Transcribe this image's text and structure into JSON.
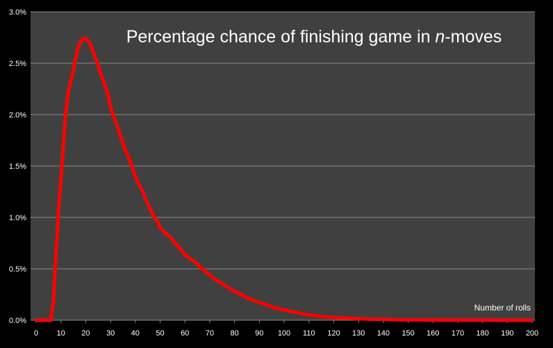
{
  "chart_data": {
    "type": "line",
    "title_main": "Percentage chance of finishing game in ",
    "title_italic": "n",
    "title_tail": "-moves",
    "xlabel": "Number of rolls",
    "ylabel": "",
    "xlim": [
      0,
      200
    ],
    "ylim": [
      0,
      0.03
    ],
    "x_ticks": [
      0,
      10,
      20,
      30,
      40,
      50,
      60,
      70,
      80,
      90,
      100,
      110,
      120,
      130,
      140,
      150,
      160,
      170,
      180,
      190,
      200
    ],
    "y_ticks": [
      0,
      0.005,
      0.01,
      0.015,
      0.02,
      0.025,
      0.03
    ],
    "y_tick_labels": [
      "0.0%",
      "0.5%",
      "1.0%",
      "1.5%",
      "2.0%",
      "2.5%",
      "3.0%"
    ],
    "grid": true,
    "line_color": "#ff0000",
    "background_color": "#404040",
    "series": [
      {
        "x": [
          0,
          6,
          7,
          8,
          9,
          10,
          11,
          12,
          13,
          14,
          15,
          16,
          17,
          18,
          19,
          20,
          21,
          22,
          23,
          24,
          25,
          26,
          27,
          28,
          29,
          30,
          31,
          32,
          33,
          34,
          35,
          36,
          37,
          38,
          39,
          40,
          41,
          42,
          43,
          44,
          45,
          46,
          47,
          48,
          49,
          50,
          52,
          54,
          56,
          58,
          60,
          62,
          64,
          66,
          68,
          70,
          72,
          74,
          76,
          78,
          80,
          82,
          84,
          86,
          88,
          90,
          92,
          94,
          96,
          98,
          100,
          102,
          104,
          106,
          108,
          110,
          112,
          114,
          116,
          118,
          120,
          125,
          130,
          135,
          140,
          145,
          150,
          160,
          170,
          180,
          190,
          200
        ],
        "y": [
          0,
          0,
          0.002,
          0.0065,
          0.0105,
          0.0138,
          0.0172,
          0.0202,
          0.0223,
          0.0233,
          0.0242,
          0.0256,
          0.0266,
          0.0271,
          0.0274,
          0.0274,
          0.0272,
          0.0268,
          0.0261,
          0.0254,
          0.0248,
          0.024,
          0.0234,
          0.0227,
          0.0219,
          0.0207,
          0.02,
          0.0194,
          0.0186,
          0.018,
          0.0172,
          0.0165,
          0.016,
          0.0154,
          0.0147,
          0.014,
          0.0134,
          0.013,
          0.0125,
          0.0119,
          0.0113,
          0.0108,
          0.0103,
          0.0099,
          0.0096,
          0.009,
          0.0085,
          0.0081,
          0.0075,
          0.007,
          0.0064,
          0.006,
          0.0057,
          0.0052,
          0.0048,
          0.0044,
          0.004,
          0.0037,
          0.0034,
          0.0031,
          0.0028,
          0.0026,
          0.0023,
          0.0021,
          0.0019,
          0.0017,
          0.0016,
          0.0014,
          0.0012,
          0.0011,
          0.001,
          0.0009,
          0.0008,
          0.0007,
          0.0006,
          0.0005,
          0.00045,
          0.0004,
          0.00035,
          0.0003,
          0.00028,
          0.0002,
          0.00015,
          0.0001,
          8e-05,
          5e-05,
          4e-05,
          2e-05,
          1e-05,
          5e-06,
          2e-06,
          0
        ]
      }
    ]
  }
}
